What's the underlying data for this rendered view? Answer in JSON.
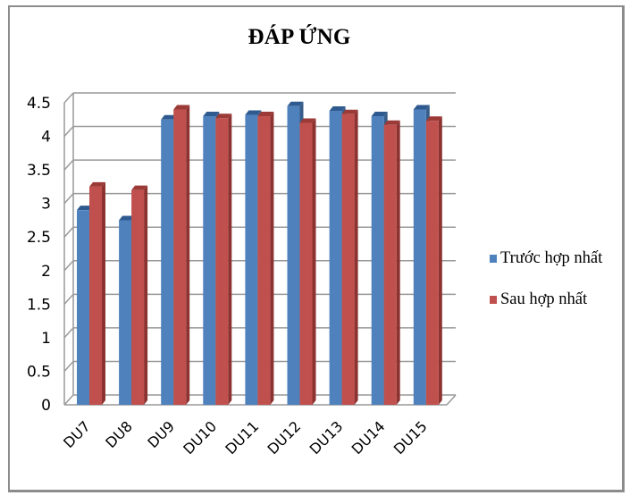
{
  "chart_data": {
    "type": "bar",
    "style": "3d-clustered-column",
    "title": "ĐÁP ỨNG",
    "xlabel": "",
    "ylabel": "",
    "categories": [
      "DU7",
      "DU8",
      "DU9",
      "DU10",
      "DU11",
      "DU12",
      "DU13",
      "DU14",
      "DU15"
    ],
    "series": [
      {
        "name": "Trước hợp nhất",
        "color": "#4f81bd",
        "values": [
          2.9,
          2.75,
          4.25,
          4.3,
          4.32,
          4.45,
          4.38,
          4.3,
          4.4
        ]
      },
      {
        "name": "Sau hợp nhất",
        "color": "#c0504d",
        "values": [
          3.25,
          3.2,
          4.4,
          4.27,
          4.3,
          4.2,
          4.33,
          4.17,
          4.23
        ]
      }
    ],
    "ylim": [
      0,
      4.5
    ],
    "yticks": [
      "0",
      "0.5",
      "1",
      "1.5",
      "2",
      "2.5",
      "3",
      "3.5",
      "4",
      "4.5"
    ],
    "grid": true,
    "legend_position": "right"
  },
  "colors": {
    "series_1": "#4f81bd",
    "series_1_side": "#385d8a",
    "series_1_top": "#2f5a8f",
    "series_2": "#c0504d",
    "series_2_side": "#8c3230",
    "series_2_top": "#9b3a37",
    "grid": "#999999",
    "frame": "#8c8c8c"
  }
}
